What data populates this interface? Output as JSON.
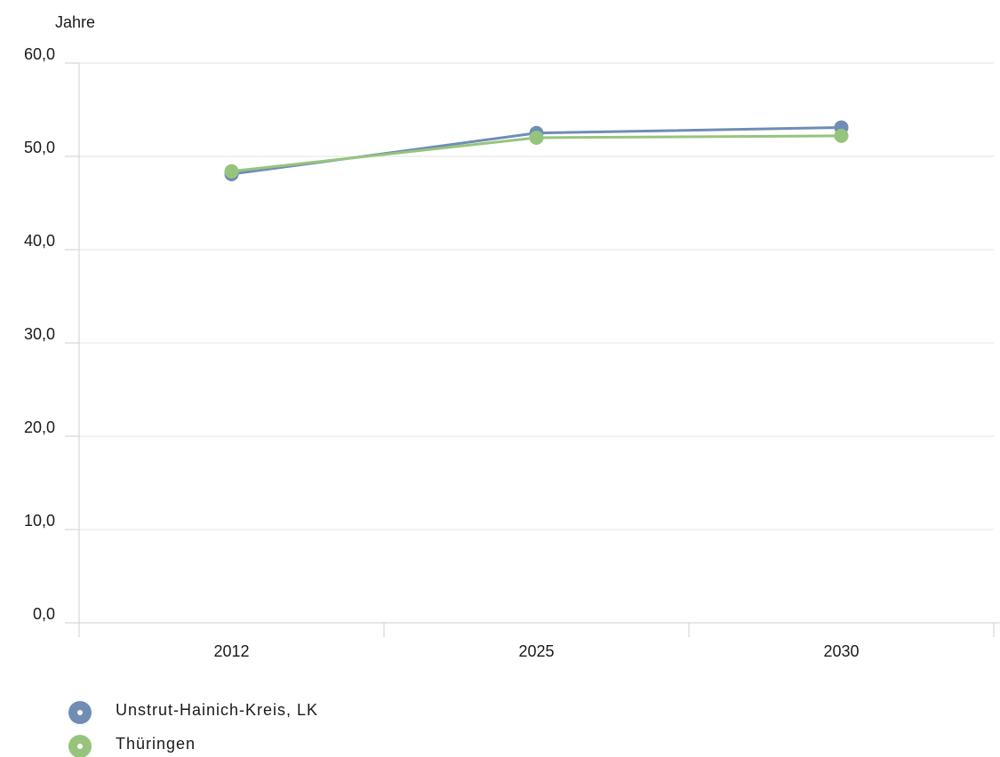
{
  "chart_data": {
    "type": "line",
    "title": "",
    "xlabel": "",
    "ylabel": "Jahre",
    "categories": [
      "2012",
      "2025",
      "2030"
    ],
    "ylim": [
      0,
      60
    ],
    "yticks": [
      "0,0",
      "10,0",
      "20,0",
      "30,0",
      "40,0",
      "50,0",
      "60,0"
    ],
    "grid": true,
    "legend_position": "bottom-left",
    "series": [
      {
        "name": "Unstrut-Hainich-Kreis, LK",
        "values": [
          48.1,
          52.5,
          53.1
        ],
        "color": "#6f8db5"
      },
      {
        "name": "Thüringen",
        "values": [
          48.4,
          52.0,
          52.2
        ],
        "color": "#97c47d"
      }
    ]
  }
}
